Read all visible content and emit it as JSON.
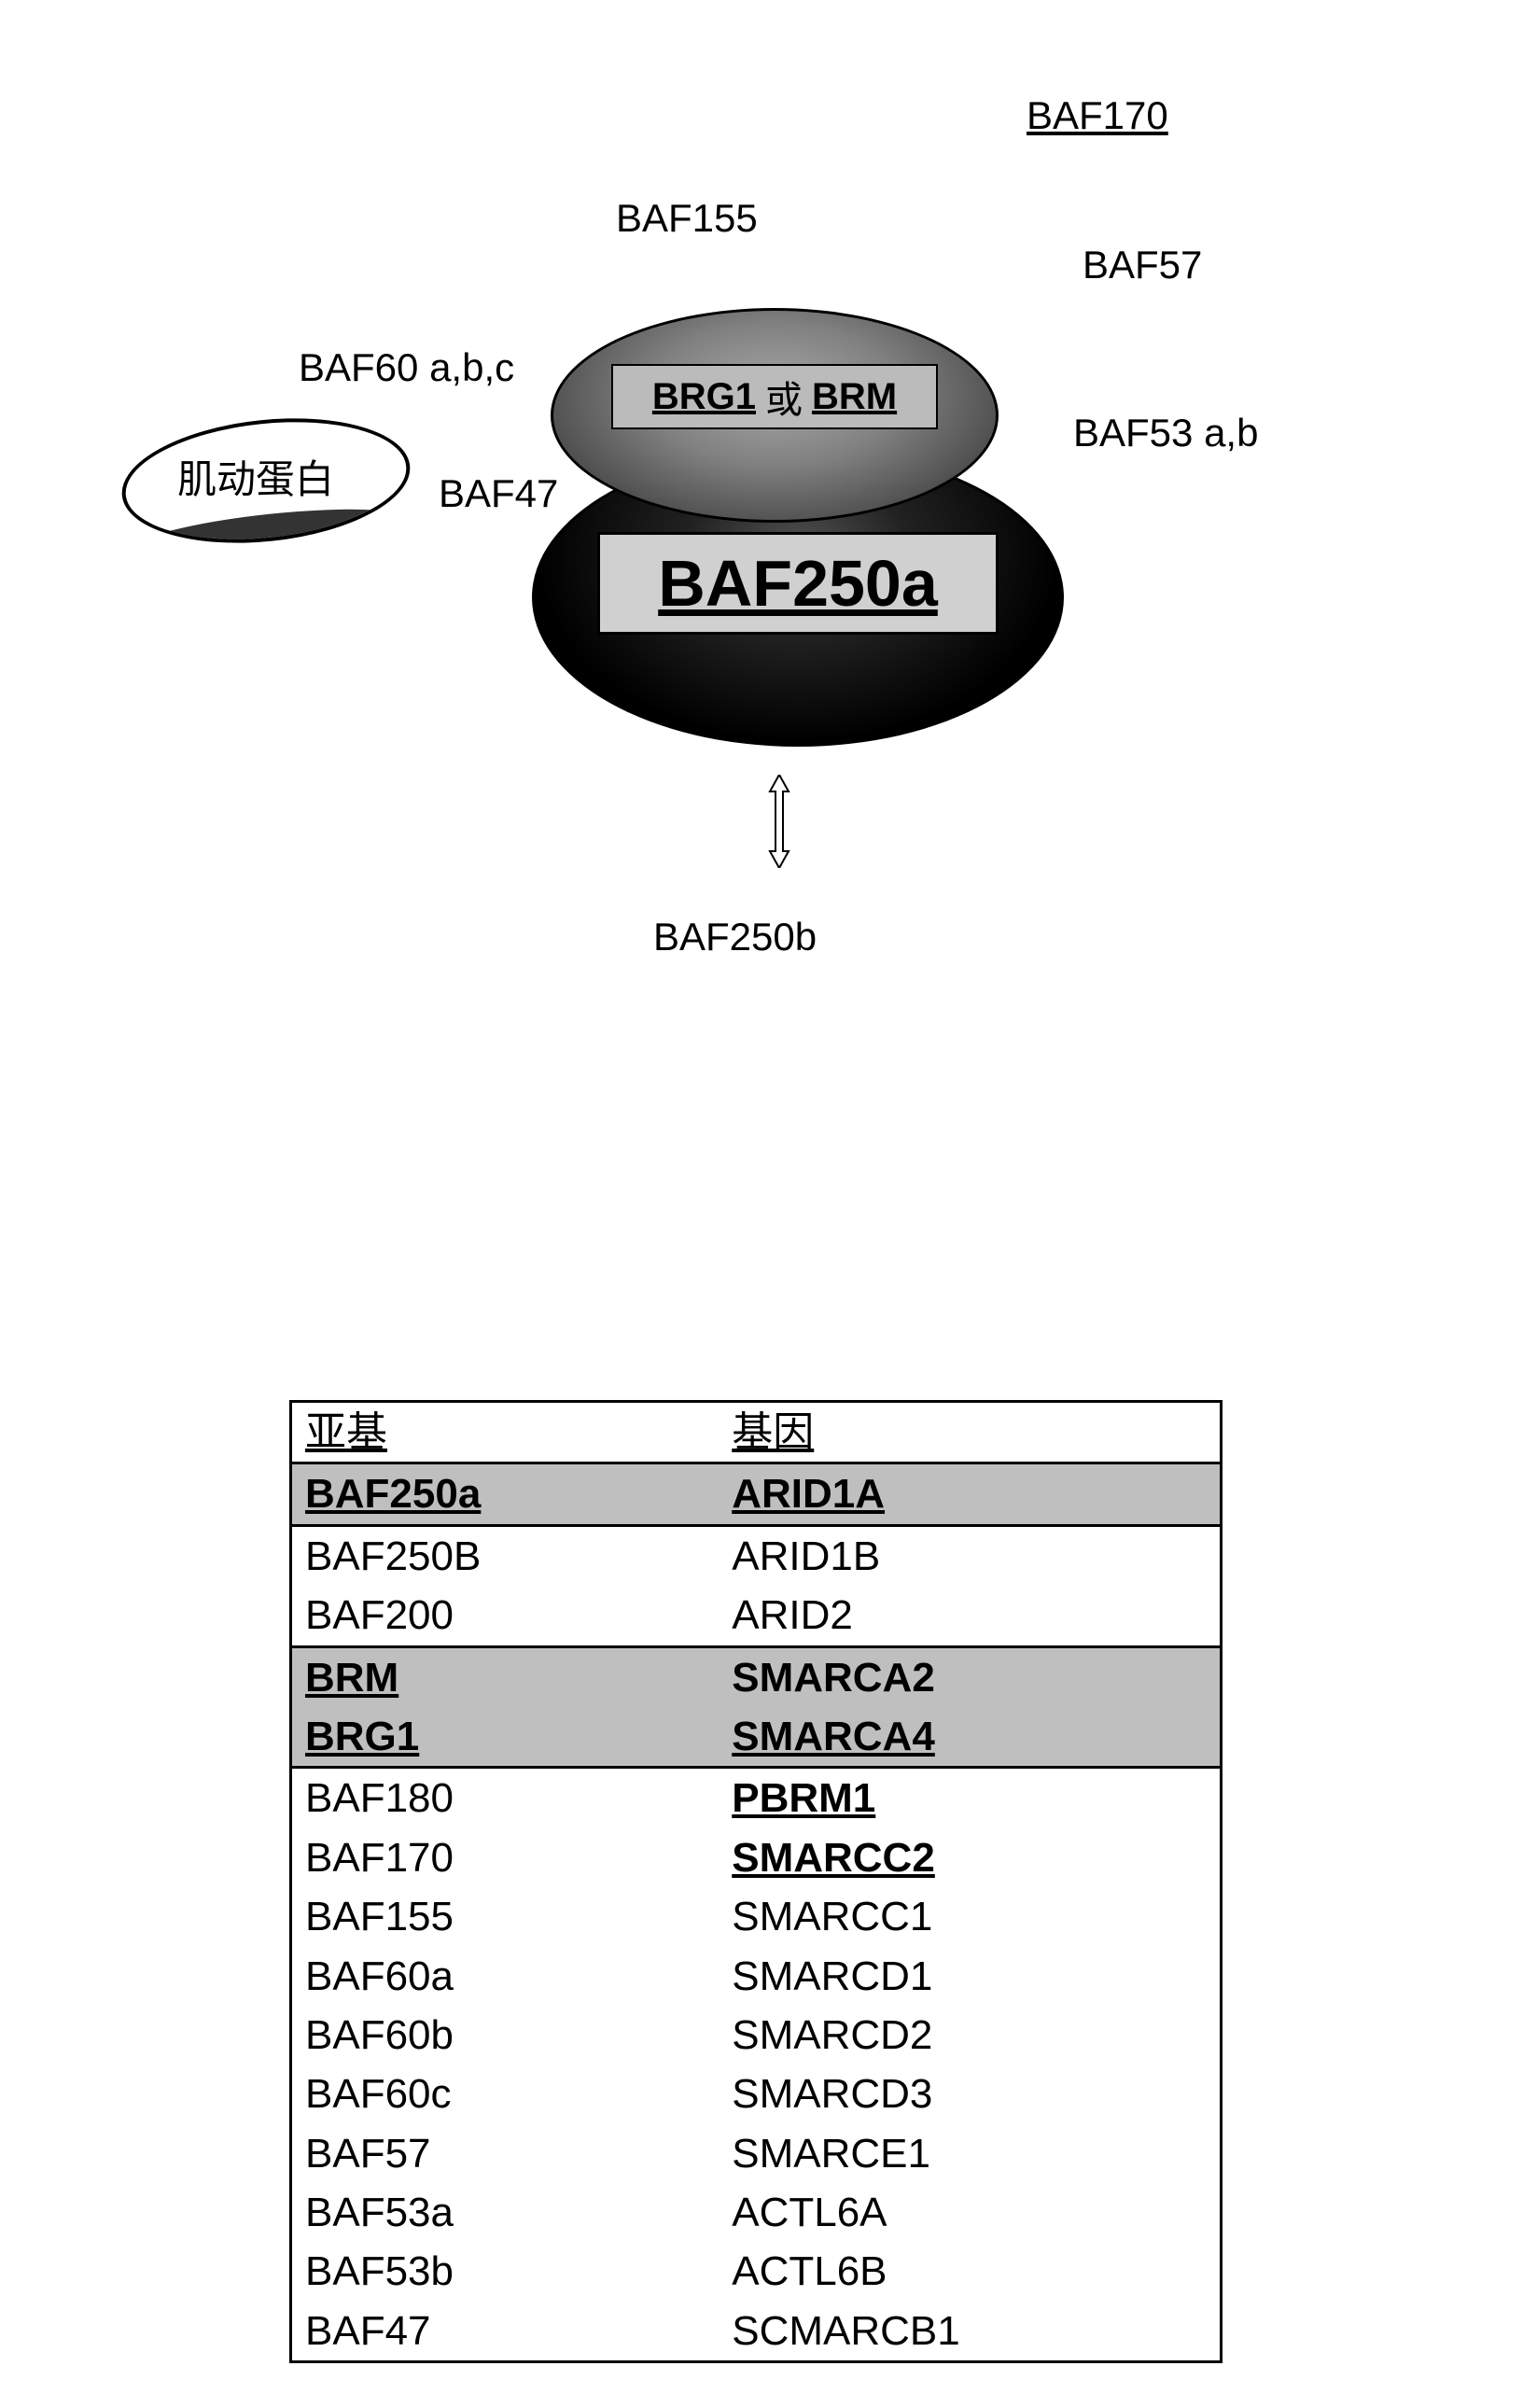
{
  "diagram": {
    "labels": {
      "baf170": "BAF170",
      "baf155": "BAF155",
      "baf57": "BAF57",
      "baf60abc": "BAF60 a,b,c",
      "baf53ab": "BAF53 a,b",
      "baf47": "BAF47",
      "actin": "肌动蛋白",
      "brg1": "BRG1",
      "or": "或",
      "brm": "BRM",
      "baf250a": "BAF250a",
      "baf250b": "BAF250b"
    },
    "colors": {
      "background": "#ffffff",
      "text": "#000000",
      "ellipse_border": "#000000",
      "brg_fill_light": "#a8a8a8",
      "brg_fill_dark": "#222222",
      "baf250a_fill": "#000000",
      "highlight_row_bg": "#bfbfbf",
      "label_box_bg": "#d0d0d0"
    },
    "fonts": {
      "label_size_pt": 32,
      "baf250a_size_pt": 52,
      "table_size_pt": 33
    }
  },
  "table": {
    "headers": {
      "subunit": "亚基",
      "gene": "基因"
    },
    "rows": [
      {
        "subunit": "BAF250a",
        "gene": "ARID1A",
        "highlight": true,
        "gene_underline": true
      },
      {
        "subunit": "BAF250B",
        "gene": "ARID1B"
      },
      {
        "subunit": "BAF200",
        "gene": "ARID2"
      },
      {
        "subunit": "BRM",
        "gene": "SMARCA2",
        "highlight": true,
        "block": "start"
      },
      {
        "subunit": "BRG1",
        "gene": "SMARCA4",
        "highlight": true,
        "gene_underline": true,
        "block": "end"
      },
      {
        "subunit": "BAF180",
        "gene": "PBRM1",
        "gene_bold_underline": true
      },
      {
        "subunit": "BAF170",
        "gene": "SMARCC2",
        "gene_bold_underline": true
      },
      {
        "subunit": "BAF155",
        "gene": "SMARCC1"
      },
      {
        "subunit": "BAF60a",
        "gene": "SMARCD1"
      },
      {
        "subunit": "BAF60b",
        "gene": "SMARCD2"
      },
      {
        "subunit": "BAF60c",
        "gene": "SMARCD3"
      },
      {
        "subunit": "BAF57",
        "gene": "SMARCE1"
      },
      {
        "subunit": "BAF53a",
        "gene": "ACTL6A"
      },
      {
        "subunit": "BAF53b",
        "gene": "ACTL6B"
      },
      {
        "subunit": "BAF47",
        "gene": "SCMARCB1"
      }
    ]
  }
}
